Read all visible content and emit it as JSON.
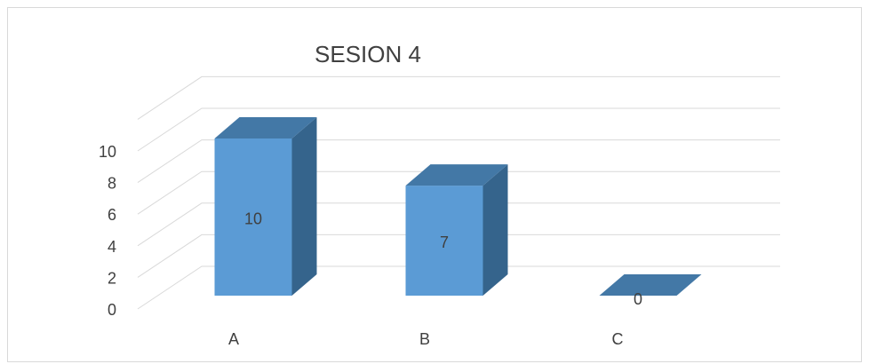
{
  "chart_data": {
    "type": "bar",
    "title": "SESION 4",
    "categories": [
      "A",
      "B",
      "C"
    ],
    "values": [
      10,
      7,
      0
    ],
    "data_labels": [
      "10",
      "7",
      "0"
    ],
    "y_ticks": [
      "0",
      "2",
      "4",
      "6",
      "8",
      "10"
    ],
    "ylim": [
      0,
      12
    ],
    "xlabel": "",
    "ylabel": "",
    "grid": true,
    "style": "3d-column",
    "colors": {
      "front": "#5b9bd5",
      "side": "#35648c",
      "top": "#4378a6",
      "grid": "#d9d9d9",
      "text": "#404040"
    }
  }
}
